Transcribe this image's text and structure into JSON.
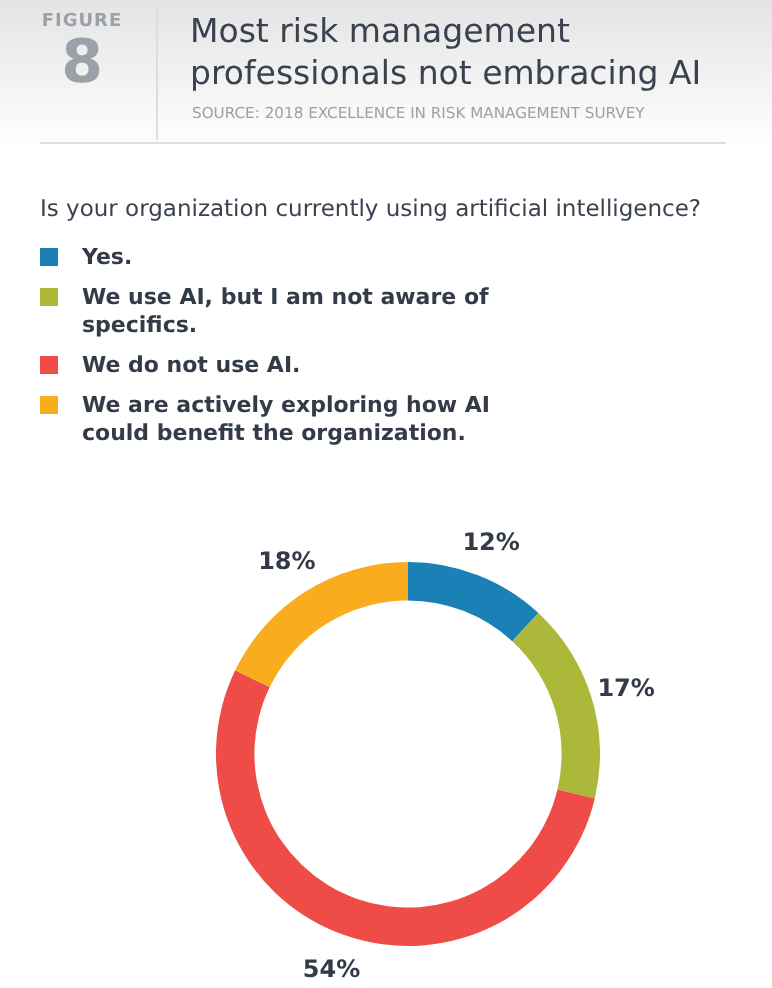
{
  "chart_data": {
    "type": "donut",
    "title": "Most risk management professionals not embracing AI",
    "subtitle": "Is your organization currently using artificial intelligence?",
    "annotations": [
      "FIGURE",
      "8",
      "SOURCE: 2018 EXCELLENCE IN RISK MANAGEMENT SURVEY"
    ],
    "categories": [
      "Yes.",
      "We use AI, but I am not aware of specifics.",
      "We do not use AI.",
      "We are actively exploring how AI could benefit the organization."
    ],
    "values": [
      12,
      17,
      54,
      18
    ],
    "value_labels": [
      "12%",
      "17%",
      "54%",
      "18%"
    ],
    "colors": [
      "#1a80b6",
      "#abb83a",
      "#ef4b47",
      "#f9ac1d"
    ],
    "legend": "top left"
  }
}
